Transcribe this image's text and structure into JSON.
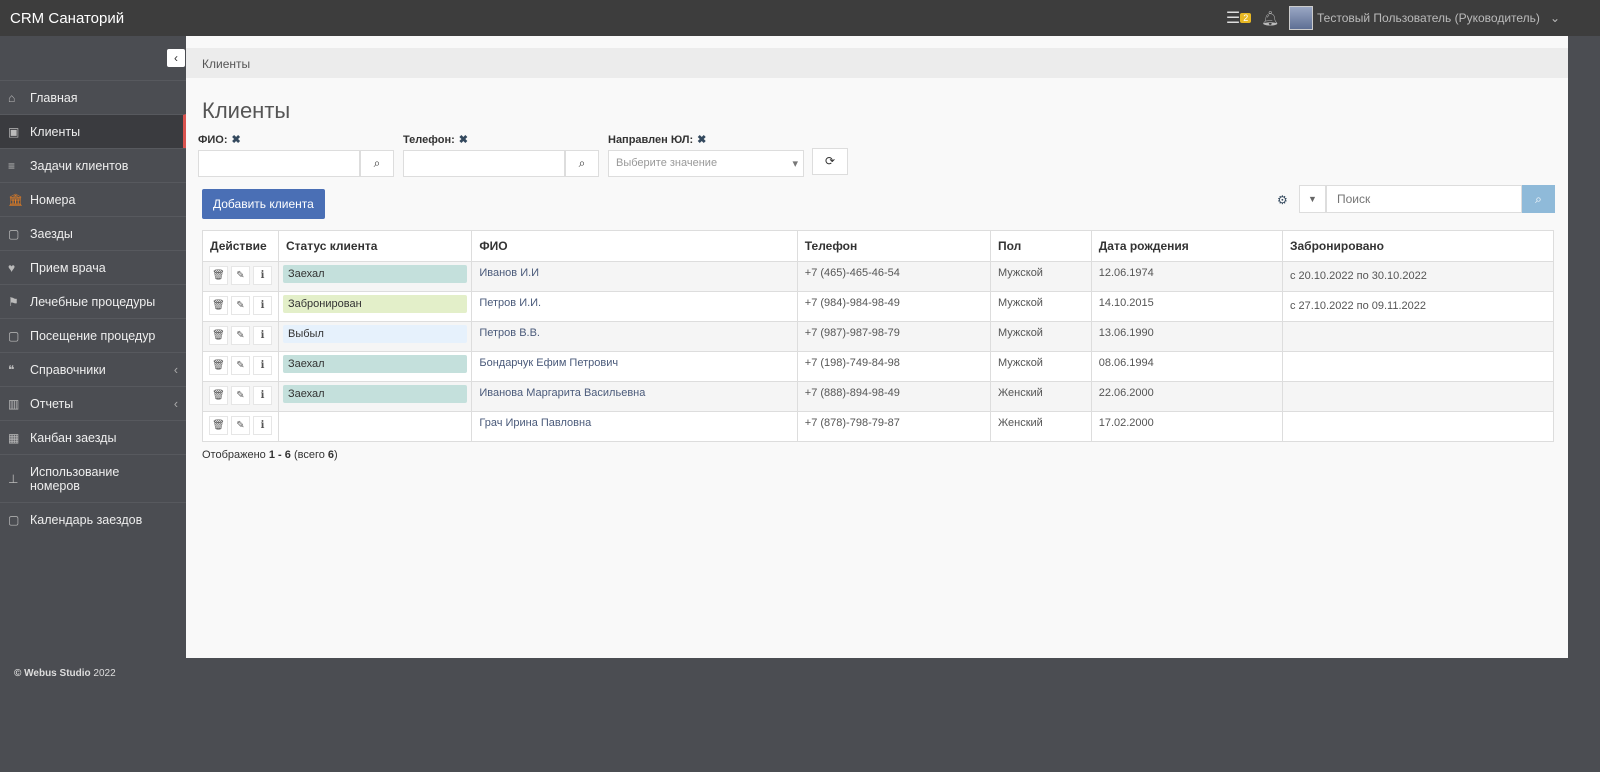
{
  "app": {
    "title": "CRM Санаторий",
    "tasks_count": "2",
    "user": "Тестовый Пользователь (Руководитель)"
  },
  "sidebar": {
    "items": [
      {
        "label": "Главная",
        "icon": "home-icon"
      },
      {
        "label": "Клиенты",
        "icon": "id-card-icon",
        "active": true
      },
      {
        "label": "Задачи клиентов",
        "icon": "list-icon"
      },
      {
        "label": "Номера",
        "icon": "bank-icon"
      },
      {
        "label": "Заезды",
        "icon": "calendar-plus-icon"
      },
      {
        "label": "Прием врача",
        "icon": "heartbeat-icon"
      },
      {
        "label": "Лечебные процедуры",
        "icon": "flag-icon"
      },
      {
        "label": "Посещение процедур",
        "icon": "calendar-icon"
      },
      {
        "label": "Справочники",
        "icon": "quote-icon"
      },
      {
        "label": "Отчеты",
        "icon": "bar-chart-icon"
      },
      {
        "label": "Канбан заезды",
        "icon": "grid-icon"
      },
      {
        "label": "Использование номеров",
        "icon": "sitemap-icon"
      },
      {
        "label": "Календарь заездов",
        "icon": "calendar-icon"
      }
    ],
    "footer_brand": "© Webus Studio",
    "footer_year": "2022"
  },
  "breadcrumb": "Клиенты",
  "page_title": "Клиенты",
  "filters": {
    "fio_label": "ФИО:",
    "phone_label": "Телефон:",
    "org_label": "Направлен ЮЛ:",
    "org_placeholder": "Выберите значение"
  },
  "add_button": "Добавить клиента",
  "search_placeholder": "Поиск",
  "table": {
    "headers": [
      "Действие",
      "Статус клиента",
      "ФИО",
      "Телефон",
      "Пол",
      "Дата рождения",
      "Забронировано"
    ],
    "rows": [
      {
        "status": "Заехал",
        "status_color": "#c4e0dc",
        "fio": "Иванов И.И",
        "phone": "+7 (465)-465-46-54",
        "sex": "Мужской",
        "dob": "12.06.1974",
        "booked": "с 20.10.2022 по 30.10.2022"
      },
      {
        "status": "Забронирован",
        "status_color": "#e3efc9",
        "fio": "Петров И.И.",
        "phone": "+7 (984)-984-98-49",
        "sex": "Мужской",
        "dob": "14.10.2015",
        "booked": "с 27.10.2022 по 09.11.2022"
      },
      {
        "status": "Выбыл",
        "status_color": "#e6f1fc",
        "fio": "Петров В.В.",
        "phone": "+7 (987)-987-98-79",
        "sex": "Мужской",
        "dob": "13.06.1990",
        "booked": ""
      },
      {
        "status": "Заехал",
        "status_color": "#c4e0dc",
        "fio": "Бондарчук Ефим Петрович",
        "phone": "+7 (198)-749-84-98",
        "sex": "Мужской",
        "dob": "08.06.1994",
        "booked": ""
      },
      {
        "status": "Заехал",
        "status_color": "#c4e0dc",
        "fio": "Иванова Маргарита Васильевна",
        "phone": "+7 (888)-894-98-49",
        "sex": "Женский",
        "dob": "22.06.2000",
        "booked": ""
      },
      {
        "status": "",
        "status_color": "",
        "fio": "Грач Ирина Павловна",
        "phone": "+7 (878)-798-79-87",
        "sex": "Женский",
        "dob": "17.02.2000",
        "booked": ""
      }
    ]
  },
  "summary": {
    "prefix": "Отображено",
    "range": "1 - 6",
    "total_prefix": "(всего",
    "total": "6",
    "suffix": ")"
  }
}
